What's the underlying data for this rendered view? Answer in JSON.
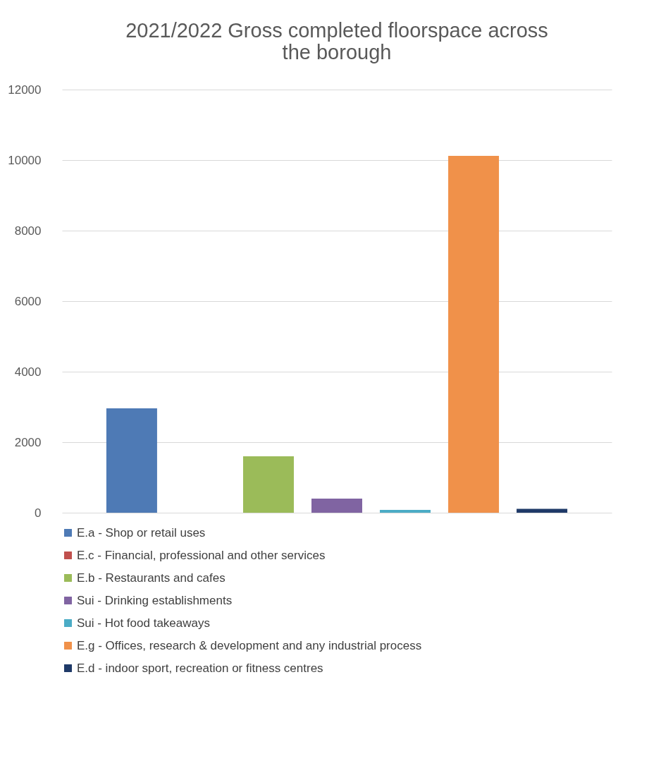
{
  "chart_data": {
    "type": "bar",
    "title": "2021/2022 Gross completed floorspace across the borough",
    "categories": [
      null
    ],
    "series": [
      {
        "name": "E.a - Shop or retail uses",
        "color": "#4e7ab5",
        "values": [
          2960
        ]
      },
      {
        "name": "E.c - Financial, professional and other services",
        "color": "#c0504d",
        "values": [
          0
        ]
      },
      {
        "name": "E.b - Restaurants and cafes",
        "color": "#9bbb59",
        "values": [
          1600
        ]
      },
      {
        "name": "Sui - Drinking establishments",
        "color": "#8064a2",
        "values": [
          400
        ]
      },
      {
        "name": "Sui - Hot food takeaways",
        "color": "#4bacc6",
        "values": [
          80
        ]
      },
      {
        "name": "E.g - Offices, research & development and any industrial process",
        "color": "#f0914a",
        "values": [
          10120
        ]
      },
      {
        "name": "E.d - indoor sport, recreation or fitness centres",
        "color": "#1f3a68",
        "values": [
          110
        ]
      }
    ],
    "ylim": [
      0,
      12000
    ],
    "yticks": [
      0,
      2000,
      4000,
      6000,
      8000,
      10000,
      12000
    ],
    "grid": "y",
    "legend": "bottom",
    "tick_labels": "y"
  }
}
